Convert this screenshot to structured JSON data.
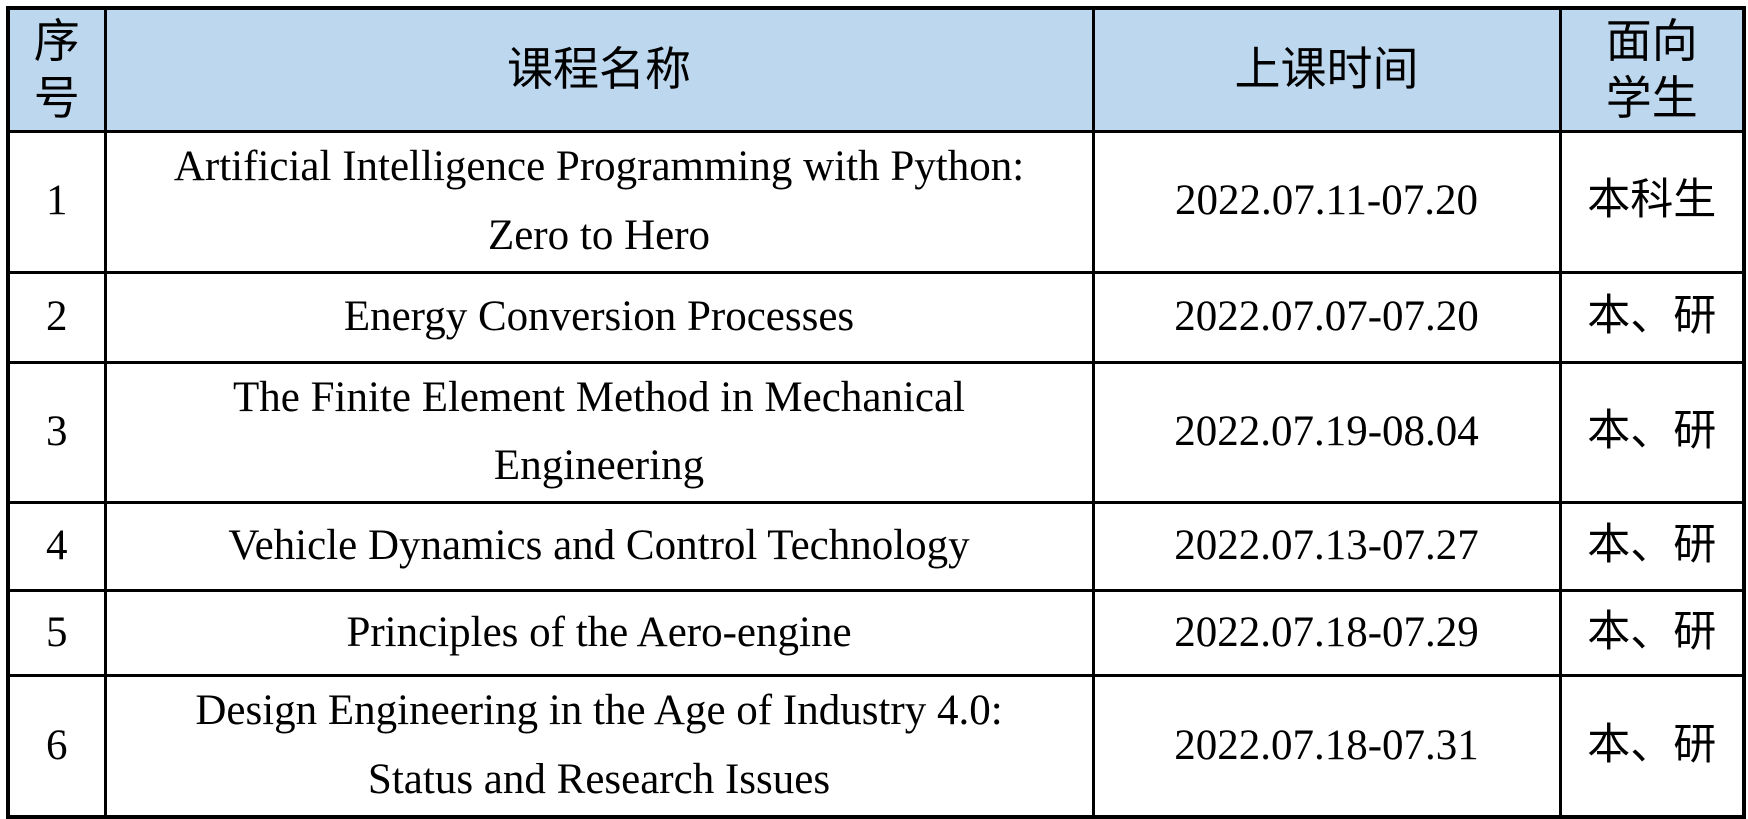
{
  "table": {
    "header_bg": "#BDD7EE",
    "border_color": "#000000",
    "columns": [
      {
        "key": "index",
        "label": "序\n号"
      },
      {
        "key": "name",
        "label": "课程名称"
      },
      {
        "key": "time",
        "label": "上课时间"
      },
      {
        "key": "audience",
        "label": "面向\n学生"
      }
    ],
    "rows": [
      {
        "index": "1",
        "name": "Artificial Intelligence Programming with Python:\nZero to Hero",
        "time": "2022.07.11-07.20",
        "audience": "本科生"
      },
      {
        "index": "2",
        "name": "Energy Conversion Processes",
        "time": "2022.07.07-07.20",
        "audience": "本、研"
      },
      {
        "index": "3",
        "name": "The Finite Element Method in Mechanical\nEngineering",
        "time": "2022.07.19-08.04",
        "audience": "本、研"
      },
      {
        "index": "4",
        "name": "Vehicle Dynamics and Control Technology",
        "time": "2022.07.13-07.27",
        "audience": "本、研"
      },
      {
        "index": "5",
        "name": "Principles of the Aero-engine",
        "time": "2022.07.18-07.29",
        "audience": "本、研"
      },
      {
        "index": "6",
        "name": "Design Engineering in the Age of Industry 4.0:\nStatus and Research Issues",
        "time": "2022.07.18-07.31",
        "audience": "本、研"
      }
    ]
  }
}
